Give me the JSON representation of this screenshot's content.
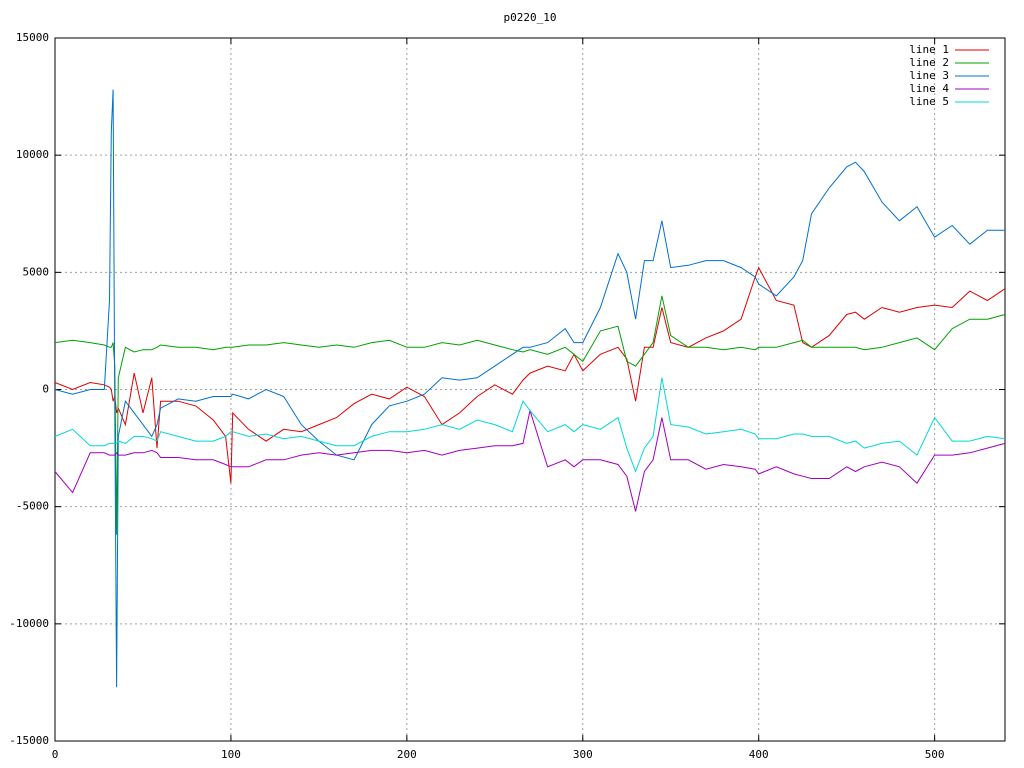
{
  "chart_data": {
    "type": "line",
    "title": "p0220_10",
    "x": [
      0,
      10,
      20,
      28,
      31,
      32,
      33,
      34,
      35,
      36,
      40,
      45,
      50,
      55,
      58,
      60,
      70,
      80,
      90,
      97,
      100,
      101,
      110,
      120,
      130,
      140,
      150,
      160,
      170,
      180,
      190,
      200,
      210,
      220,
      230,
      240,
      250,
      260,
      266,
      270,
      280,
      290,
      295,
      300,
      310,
      320,
      325,
      330,
      335,
      340,
      345,
      350,
      360,
      370,
      380,
      390,
      398,
      400,
      410,
      420,
      425,
      430,
      440,
      450,
      455,
      460,
      470,
      480,
      490,
      500,
      510,
      520,
      530,
      540
    ],
    "series": [
      {
        "name": "line 1",
        "color": "#e00000",
        "values": [
          300,
          0,
          300,
          200,
          100,
          0,
          -500,
          -300,
          -1000,
          -800,
          -1500,
          700,
          -1000,
          500,
          -2500,
          -500,
          -500,
          -700,
          -1300,
          -2000,
          -4000,
          -1000,
          -1700,
          -2200,
          -1700,
          -1800,
          -1500,
          -1200,
          -600,
          -200,
          -400,
          100,
          -300,
          -1500,
          -1000,
          -300,
          200,
          -200,
          400,
          700,
          1000,
          800,
          1500,
          800,
          1500,
          1800,
          1300,
          -500,
          1800,
          1800,
          3500,
          2000,
          1800,
          2200,
          2500,
          3000,
          4800,
          5200,
          3800,
          3600,
          2000,
          1800,
          2300,
          3200,
          3300,
          3000,
          3500,
          3300,
          3500,
          3600,
          3500,
          4200,
          3800,
          4300
        ]
      },
      {
        "name": "line 2",
        "color": "#00a000",
        "values": [
          2000,
          2100,
          2000,
          1900,
          1800,
          1800,
          2000,
          1000,
          -6200,
          500,
          1800,
          1600,
          1700,
          1700,
          1800,
          1900,
          1800,
          1800,
          1700,
          1800,
          1800,
          1800,
          1900,
          1900,
          2000,
          1900,
          1800,
          1900,
          1800,
          2000,
          2100,
          1800,
          1800,
          2000,
          1900,
          2100,
          1900,
          1700,
          1600,
          1700,
          1500,
          1800,
          1500,
          1200,
          2500,
          2700,
          1200,
          1000,
          1500,
          2000,
          4000,
          2300,
          1800,
          1800,
          1700,
          1800,
          1700,
          1800,
          1800,
          2000,
          2100,
          1800,
          1800,
          1800,
          1800,
          1700,
          1800,
          2000,
          2200,
          1700,
          2600,
          3000,
          3000,
          3200
        ]
      },
      {
        "name": "line 3",
        "color": "#0070d0",
        "values": [
          0,
          -200,
          0,
          0,
          3800,
          11000,
          12800,
          -1000,
          -12700,
          -2000,
          -500,
          -1000,
          -1500,
          -2000,
          -1500,
          -800,
          -400,
          -500,
          -300,
          -300,
          -300,
          -200,
          -400,
          0,
          -300,
          -1500,
          -2200,
          -2800,
          -3000,
          -1500,
          -700,
          -500,
          -200,
          500,
          400,
          500,
          1000,
          1500,
          1800,
          1800,
          2000,
          2600,
          2000,
          2000,
          3500,
          5800,
          5000,
          3000,
          5500,
          5500,
          7200,
          5200,
          5300,
          5500,
          5500,
          5200,
          4800,
          4500,
          4000,
          4800,
          5500,
          7500,
          8600,
          9500,
          9700,
          9300,
          8000,
          7200,
          7800,
          6500,
          7000,
          6200,
          6800,
          6800
        ]
      },
      {
        "name": "line 4",
        "color": "#a000c0",
        "values": [
          -3500,
          -4400,
          -2700,
          -2700,
          -2800,
          -2800,
          -2800,
          -2800,
          -2700,
          -2800,
          -2800,
          -2700,
          -2700,
          -2600,
          -2700,
          -2900,
          -2900,
          -3000,
          -3000,
          -3200,
          -3300,
          -3300,
          -3300,
          -3000,
          -3000,
          -2800,
          -2700,
          -2800,
          -2700,
          -2600,
          -2600,
          -2700,
          -2600,
          -2800,
          -2600,
          -2500,
          -2400,
          -2400,
          -2300,
          -900,
          -3300,
          -3000,
          -3300,
          -3000,
          -3000,
          -3200,
          -3700,
          -5200,
          -3500,
          -3000,
          -1200,
          -3000,
          -3000,
          -3400,
          -3200,
          -3300,
          -3400,
          -3600,
          -3300,
          -3600,
          -3700,
          -3800,
          -3800,
          -3300,
          -3500,
          -3300,
          -3100,
          -3300,
          -4000,
          -2800,
          -2800,
          -2700,
          -2500,
          -2300
        ]
      },
      {
        "name": "line 5",
        "color": "#00d8d8",
        "values": [
          -2000,
          -1700,
          -2400,
          -2400,
          -2300,
          -2300,
          -2300,
          -2300,
          -2300,
          -2200,
          -2300,
          -2000,
          -2000,
          -2100,
          -2200,
          -1800,
          -2000,
          -2200,
          -2200,
          -2000,
          -1800,
          -1800,
          -2000,
          -1900,
          -2100,
          -2000,
          -2200,
          -2400,
          -2400,
          -2000,
          -1800,
          -1800,
          -1700,
          -1500,
          -1700,
          -1300,
          -1500,
          -1800,
          -500,
          -900,
          -1800,
          -1500,
          -1800,
          -1500,
          -1700,
          -1200,
          -2500,
          -3500,
          -2500,
          -2000,
          500,
          -1500,
          -1600,
          -1900,
          -1800,
          -1700,
          -1900,
          -2100,
          -2100,
          -1900,
          -1900,
          -2000,
          -2000,
          -2300,
          -2200,
          -2500,
          -2300,
          -2200,
          -2800,
          -1200,
          -2200,
          -2200,
          -2000,
          -2100
        ]
      }
    ],
    "xlim": [
      0,
      540
    ],
    "xticks": [
      0,
      100,
      200,
      300,
      400,
      500
    ],
    "ylim": [
      -15000,
      15000
    ],
    "yticks": [
      -15000,
      -10000,
      -5000,
      0,
      5000,
      10000,
      15000
    ],
    "grid": true,
    "legend": "upper right"
  }
}
